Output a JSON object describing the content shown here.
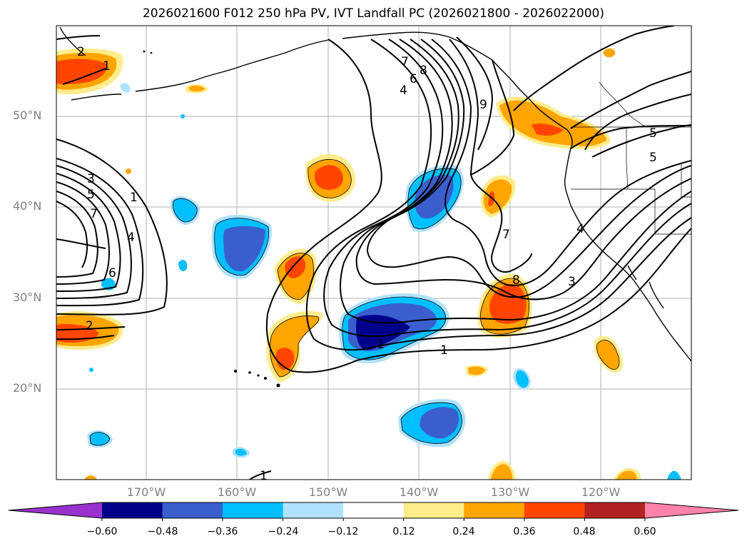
{
  "title": "2026021600 F012 250 hPa PV, IVT Landfall PC (2026021800 - 2026022000)",
  "map": {
    "lat_labels": [
      "50°N",
      "40°N",
      "30°N",
      "20°N"
    ],
    "lon_labels": [
      "170°W",
      "160°W",
      "150°W",
      "140°W",
      "130°W",
      "120°W"
    ],
    "contour_labels": [
      "2",
      "1",
      "9",
      "8",
      "7",
      "6",
      "4",
      "3",
      "5",
      "7",
      "4",
      "6",
      "2",
      "1",
      "7",
      "8",
      "3",
      "4",
      "5",
      "5",
      "1",
      "1",
      "1"
    ]
  },
  "colorbar": {
    "ticks": [
      "−0.60",
      "−0.48",
      "−0.36",
      "−0.24",
      "−0.12",
      "0.12",
      "0.24",
      "0.36",
      "0.48",
      "0.60"
    ],
    "colors": [
      "#9932cc",
      "#00008b",
      "#3a5fcd",
      "#00bfff",
      "#b0e2ff",
      "#ffffff",
      "#ffec8b",
      "#ffa500",
      "#ff4500",
      "#b22222",
      "#ff82ab"
    ]
  }
}
